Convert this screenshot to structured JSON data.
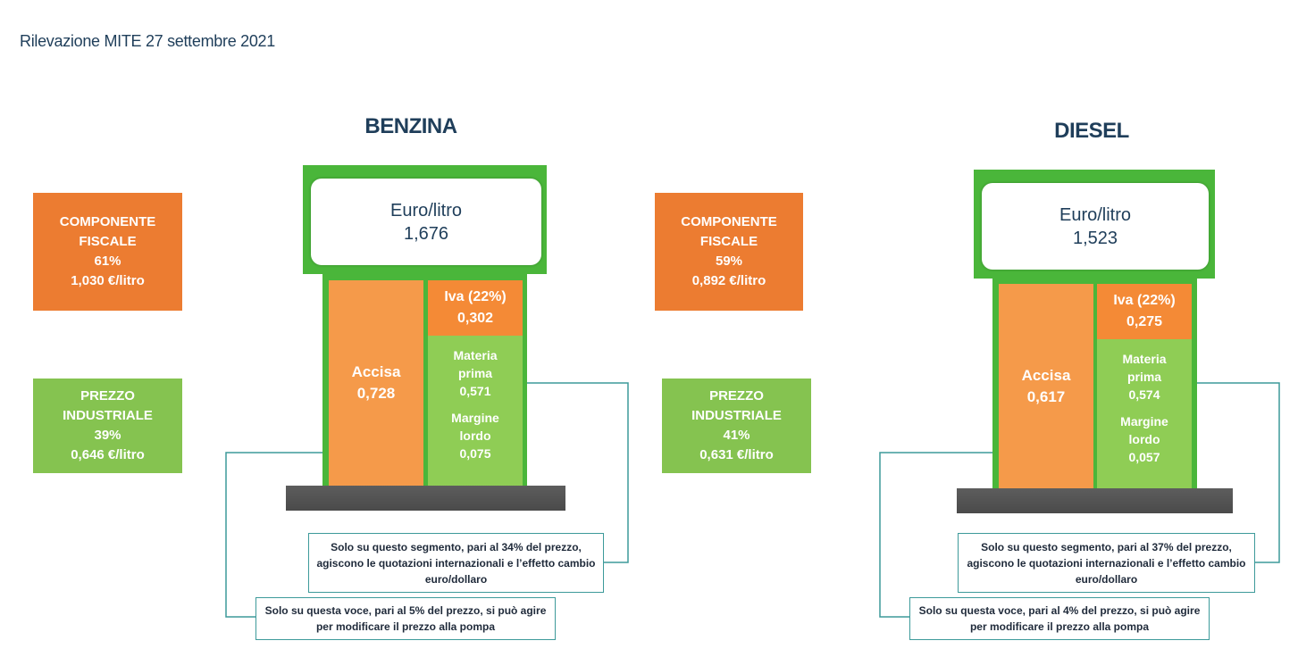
{
  "header": {
    "title": "Rilevazione MITE 27 settembre 2021"
  },
  "colors": {
    "fiscal": "#ec7c31",
    "industrial": "#85c350",
    "pump": "#4ab63a",
    "title": "#1f3e5a",
    "connector": "#3d9a9a"
  },
  "benzina": {
    "title": "BENZINA",
    "display": {
      "unit": "Euro/litro",
      "price": "1,676"
    },
    "fiscal": {
      "line1": "COMPONENTE",
      "line2": "FISCALE",
      "pct": "61%",
      "value": "1,030 €/litro"
    },
    "industrial": {
      "line1": "PREZZO",
      "line2": "INDUSTRIALE",
      "pct": "39%",
      "value": "0,646 €/litro"
    },
    "accisa": {
      "label": "Accisa",
      "value": "0,728"
    },
    "iva": {
      "label": "Iva (22%)",
      "value": "0,302"
    },
    "materia": {
      "line1": "Materia",
      "line2": "prima",
      "value": "0,571"
    },
    "margine": {
      "line1": "Margine",
      "line2": "lordo",
      "value": "0,075"
    },
    "note_materia": {
      "line1": "Solo su questo segmento, pari al 34% del prezzo,",
      "line2": "agiscono le quotazioni internazionali e l’effetto cambio",
      "line3": "euro/dollaro"
    },
    "note_margine": {
      "line1": "Solo su questa voce, pari al 5% del prezzo, si può agire",
      "line2": "per modificare il prezzo alla pompa"
    }
  },
  "diesel": {
    "title": "DIESEL",
    "display": {
      "unit": "Euro/litro",
      "price": "1,523"
    },
    "fiscal": {
      "line1": "COMPONENTE",
      "line2": "FISCALE",
      "pct": "59%",
      "value": "0,892 €/litro"
    },
    "industrial": {
      "line1": "PREZZO",
      "line2": "INDUSTRIALE",
      "pct": "41%",
      "value": "0,631 €/litro"
    },
    "accisa": {
      "label": "Accisa",
      "value": "0,617"
    },
    "iva": {
      "label": "Iva (22%)",
      "value": "0,275"
    },
    "materia": {
      "line1": "Materia",
      "line2": "prima",
      "value": "0,574"
    },
    "margine": {
      "line1": "Margine",
      "line2": "lordo",
      "value": "0,057"
    },
    "note_materia": {
      "line1": "Solo su questo segmento, pari al 37% del prezzo,",
      "line2": "agiscono le quotazioni internazionali e l’effetto cambio",
      "line3": "euro/dollaro"
    },
    "note_margine": {
      "line1": "Solo su questa voce, pari al 4% del prezzo, si può agire",
      "line2": "per modificare il prezzo alla pompa"
    }
  }
}
